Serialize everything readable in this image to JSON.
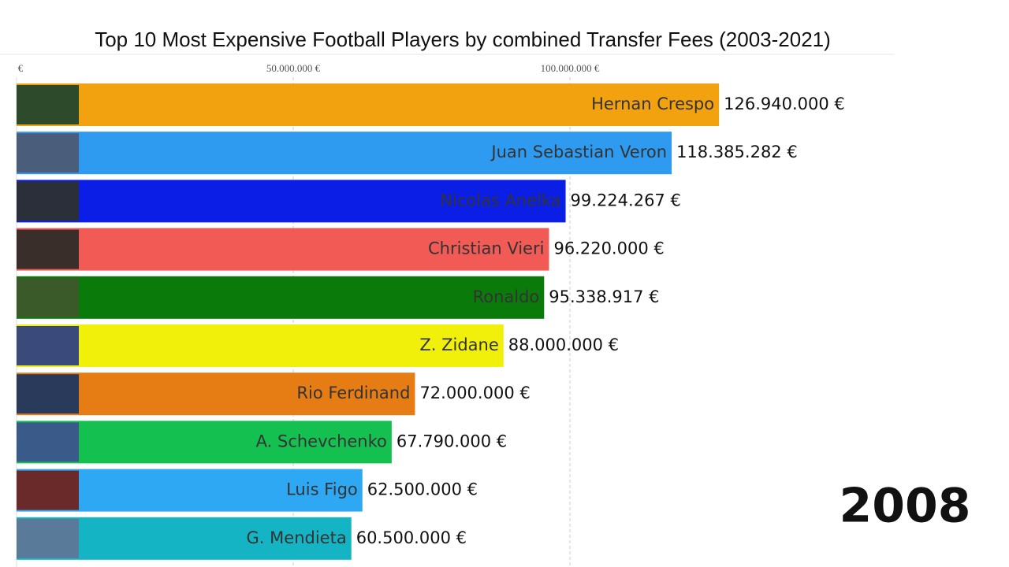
{
  "chart_data": {
    "type": "bar",
    "orientation": "horizontal",
    "title": "Top 10 Most Expensive Football Players by combined Transfer Fees (2003-2021)",
    "categories": [
      "Hernan Crespo",
      "Juan Sebastian Veron",
      "Nicolas Anelka",
      "Christian Vieri",
      "Ronaldo",
      "Z. Zidane",
      "Rio Ferdinand",
      "A. Schevchenko",
      "Luis Figo",
      "G. Mendieta"
    ],
    "values": [
      126940000,
      118385282,
      99224267,
      96220000,
      95338917,
      88000000,
      72000000,
      67790000,
      62500000,
      60500000
    ],
    "value_labels": [
      "126.940.000 €",
      "118.385.282 €",
      "99.224.267 €",
      "96.220.000 €",
      "95.338.917 €",
      "88.000.000 €",
      "72.000.000 €",
      "67.790.000 €",
      "62.500.000 €",
      "60.500.000 €"
    ],
    "colors": [
      "#f2a10f",
      "#2e9bf0",
      "#0a1ee6",
      "#f25a55",
      "#0a7a0a",
      "#f0f00a",
      "#e57c14",
      "#14c050",
      "#2ea8f2",
      "#14b4c4"
    ],
    "xlim": [
      0,
      150000000
    ],
    "xticks": [
      {
        "value": 0,
        "label": "€"
      },
      {
        "value": 50000000,
        "label": "50.000.000 €"
      },
      {
        "value": 100000000,
        "label": "100.000.000 €"
      }
    ],
    "grid": true,
    "annotation": "2008"
  }
}
